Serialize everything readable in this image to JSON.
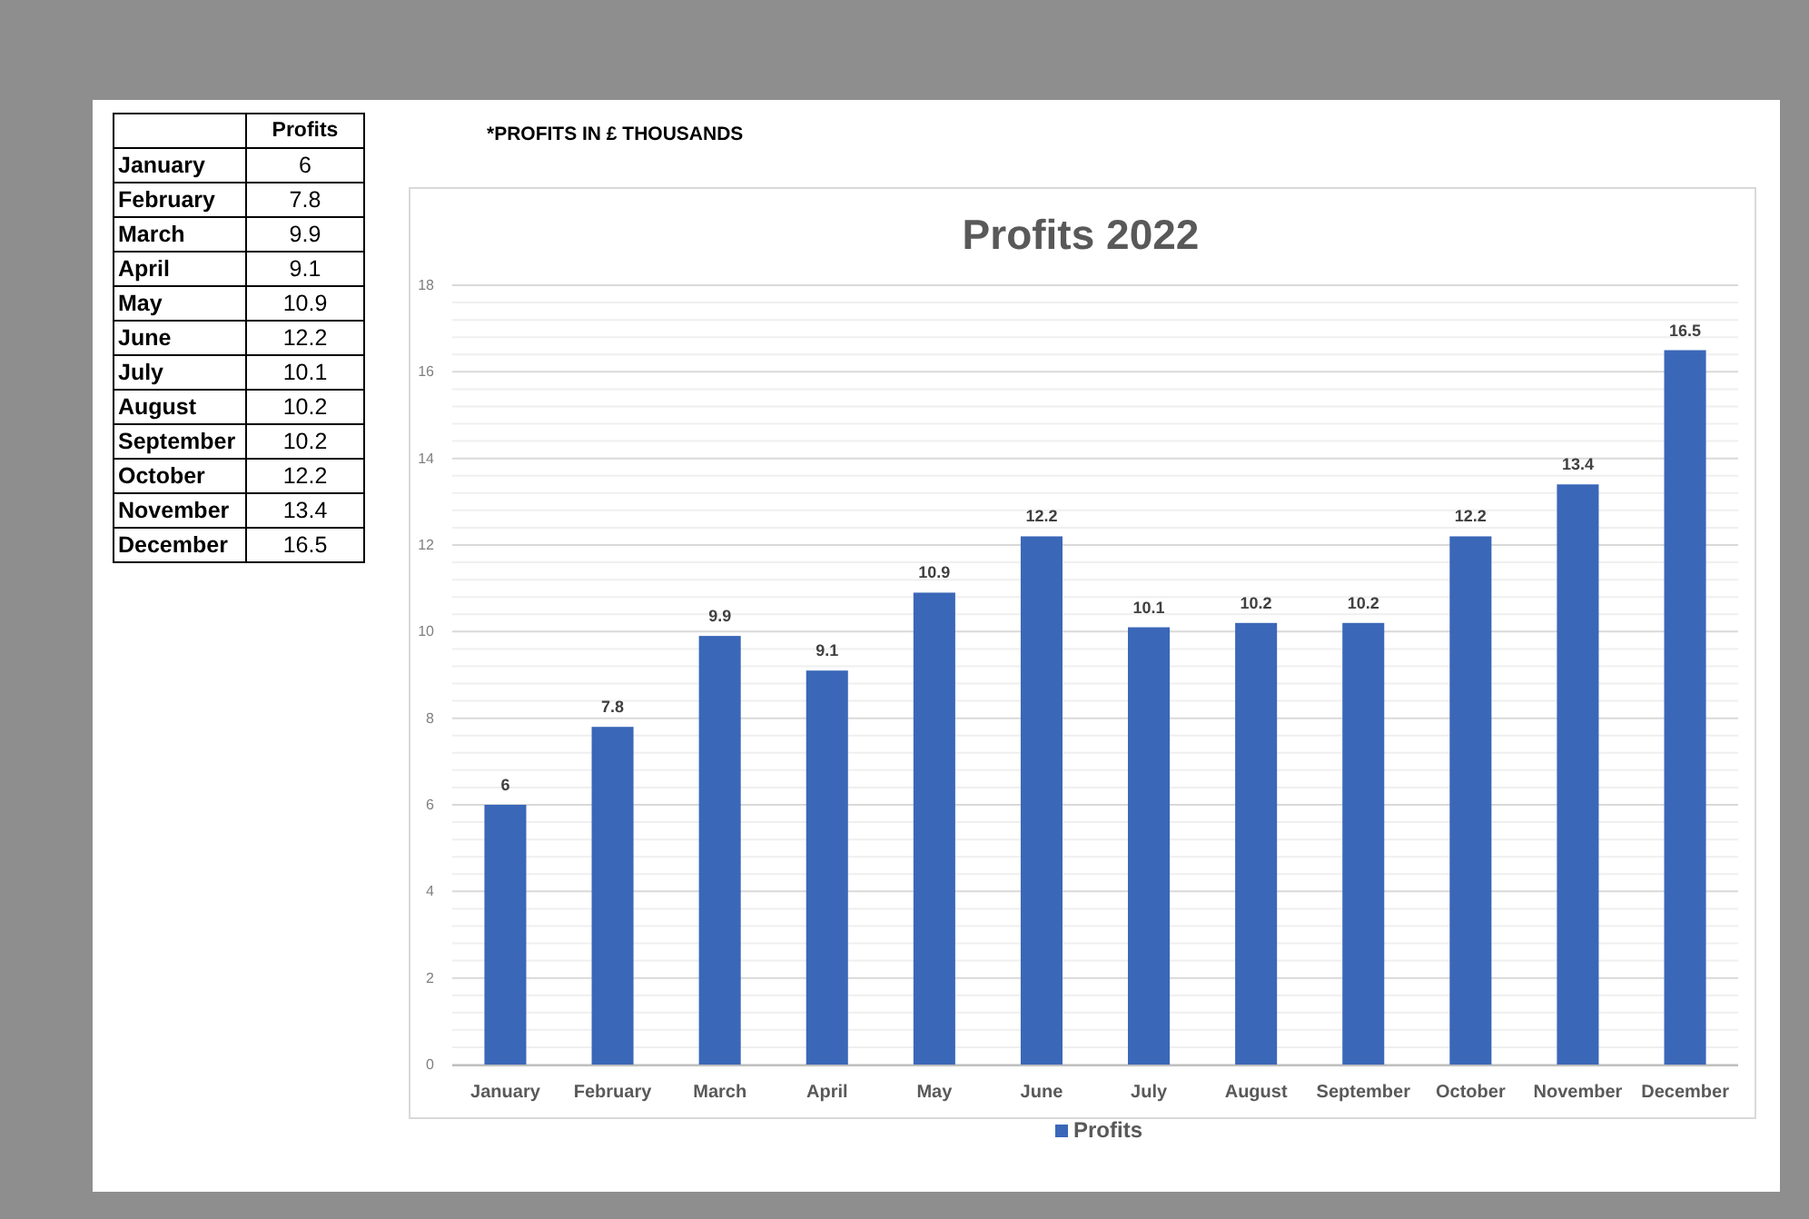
{
  "chart_data": [
    {
      "type": "other",
      "categories": [
        "January",
        "February",
        "March",
        "April",
        "May",
        "June",
        "July",
        "August",
        "September",
        "October",
        "November",
        "December"
      ],
      "series": [
        {
          "name": "Profits",
          "values": [
            6,
            7.8,
            9.9,
            9.1,
            10.9,
            12.2,
            10.1,
            10.2,
            10.2,
            12.2,
            13.4,
            16.5
          ]
        }
      ],
      "data_labels": true
    },
    {
      "type": "bar",
      "title": "Profits 2022",
      "annotations": [
        "*PROFITS IN £ THOUSANDS"
      ],
      "categories": [
        "January",
        "February",
        "March",
        "April",
        "May",
        "June",
        "July",
        "August",
        "September",
        "October",
        "November",
        "December"
      ],
      "series": [
        {
          "name": "Profits",
          "color": "#3a67b7",
          "values": [
            6,
            7.8,
            9.9,
            9.1,
            10.9,
            12.2,
            10.1,
            10.2,
            10.2,
            12.2,
            13.4,
            16.5
          ]
        }
      ],
      "ylim": [
        0,
        18
      ],
      "yticks": [
        0,
        {
          "value": 0.4,
          "label": null
        },
        {
          "value": 0.8,
          "label": null
        },
        {
          "value": 1.2,
          "label": null
        },
        {
          "value": 1.6,
          "label": null
        },
        2,
        {
          "value": 2.4,
          "label": null
        },
        {
          "value": 2.8,
          "label": null
        },
        {
          "value": 3.2,
          "label": null
        },
        {
          "value": 3.6,
          "label": null
        },
        4,
        {
          "value": 4.4,
          "label": null
        },
        {
          "value": 4.8,
          "label": null
        },
        {
          "value": 5.2,
          "label": null
        },
        {
          "value": 5.6,
          "label": null
        },
        6,
        {
          "value": 6.4,
          "label": null
        },
        {
          "value": 6.8,
          "label": null
        },
        {
          "value": 7.2,
          "label": null
        },
        {
          "value": 7.6,
          "label": null
        },
        8,
        {
          "value": 8.4,
          "label": null
        },
        {
          "value": 8.8,
          "label": null
        },
        {
          "value": 9.2,
          "label": null
        },
        {
          "value": 9.6,
          "label": null
        },
        10,
        {
          "value": 10.4,
          "label": null
        },
        {
          "value": 10.8,
          "label": null
        },
        {
          "value": 11.2,
          "label": null
        },
        {
          "value": 11.6,
          "label": null
        },
        12,
        {
          "value": 12.4,
          "label": null
        },
        {
          "value": 12.8,
          "label": null
        },
        {
          "value": 13.2,
          "label": null
        },
        {
          "value": 13.6,
          "label": null
        },
        14,
        {
          "value": 14.4,
          "label": null
        },
        {
          "value": 14.8,
          "label": null
        },
        {
          "value": 15.2,
          "label": null
        },
        {
          "value": 15.6,
          "label": null
        },
        16,
        {
          "value": 16.4,
          "label": null
        },
        {
          "value": 16.8,
          "label": null
        },
        {
          "value": 17.2,
          "label": null
        },
        {
          "value": 17.6,
          "label": null
        },
        18
      ],
      "grid": "y",
      "legend": "bottom",
      "data_labels": true
    }
  ]
}
